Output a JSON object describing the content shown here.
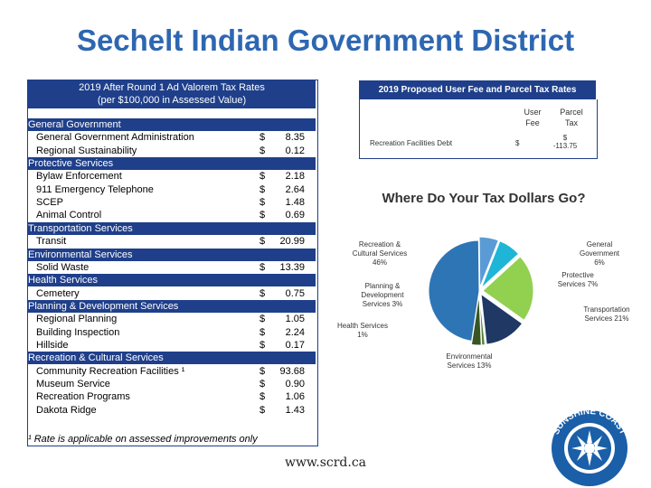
{
  "title": "Sechelt Indian Government District",
  "tax_table": {
    "header_line1": "2019 After Round 1 Ad Valorem Tax Rates",
    "header_line2": "(per $100,000 in Assessed Value)",
    "rows": [
      {
        "type": "cat",
        "label": "General Government"
      },
      {
        "type": "item",
        "label": "General Government Administration",
        "value": "8.35"
      },
      {
        "type": "item",
        "label": "Regional Sustainability",
        "value": "0.12"
      },
      {
        "type": "cat",
        "label": "Protective Services"
      },
      {
        "type": "item",
        "label": "Bylaw Enforcement",
        "value": "2.18"
      },
      {
        "type": "item",
        "label": "911 Emergency Telephone",
        "value": "2.64"
      },
      {
        "type": "item",
        "label": "SCEP",
        "value": "1.48"
      },
      {
        "type": "item",
        "label": "Animal Control",
        "value": "0.69"
      },
      {
        "type": "cat",
        "label": "Transportation Services"
      },
      {
        "type": "item",
        "label": "Transit",
        "value": "20.99"
      },
      {
        "type": "cat",
        "label": "Environmental Services"
      },
      {
        "type": "item",
        "label": "Solid Waste",
        "value": "13.39"
      },
      {
        "type": "cat",
        "label": "Health Services"
      },
      {
        "type": "item",
        "label": "Cemetery",
        "value": "0.75"
      },
      {
        "type": "cat",
        "label": "Planning & Development Services"
      },
      {
        "type": "item",
        "label": "Regional Planning",
        "value": "1.05"
      },
      {
        "type": "item",
        "label": "Building Inspection",
        "value": "2.24"
      },
      {
        "type": "item",
        "label": "Hillside",
        "value": "0.17"
      },
      {
        "type": "cat",
        "label": "Recreation & Cultural Services"
      },
      {
        "type": "item",
        "label": "Community Recreation Facilities ¹",
        "value": "93.68"
      },
      {
        "type": "item",
        "label": "Museum Service",
        "value": "0.90"
      },
      {
        "type": "item",
        "label": "Recreation Programs",
        "value": "1.06"
      },
      {
        "type": "item",
        "label": "Dakota Ridge",
        "value": "1.43"
      }
    ],
    "currency": "$",
    "footnote": "¹ Rate is applicable on assessed improvements only"
  },
  "fee_table": {
    "header": "2019 Proposed User Fee and Parcel Tax Rates",
    "col1": "User Fee",
    "col2": "Parcel Tax",
    "row_label": "Recreation Facilities Debt",
    "row_fee": "$",
    "row_parcel_line1": "$",
    "row_parcel_line2": "-113.75"
  },
  "chart_data": {
    "type": "pie",
    "title": "Where Do Your Tax Dollars Go?",
    "slices": [
      {
        "label": "Recreation & Cultural Services",
        "value": 46,
        "color": "#2e75b6",
        "text": "Recreation & Cultural Services 46%"
      },
      {
        "label": "General Government",
        "value": 6,
        "color": "#5b9bd5",
        "text": "General Government 6%"
      },
      {
        "label": "Protective Services",
        "value": 7,
        "color": "#1fb5d6",
        "text": "Protective Services 7%"
      },
      {
        "label": "Transportation Services",
        "value": 21,
        "color": "#92d050",
        "text": "Transportation Services 21%"
      },
      {
        "label": "Environmental Services",
        "value": 13,
        "color": "#1f3864",
        "text": "Environmental Services 13%"
      },
      {
        "label": "Health Services",
        "value": 1,
        "color": "#548235",
        "text": "Health Services 1%"
      },
      {
        "label": "Planning & Development Services",
        "value": 3,
        "color": "#375623",
        "text": "Planning & Development Services 3%"
      }
    ]
  },
  "url": "www.scrd.ca",
  "logo": {
    "text_top": "SUNSHINE COAST",
    "text_bottom": "REGIONAL DISTRICT",
    "color": "#1a5fa8"
  }
}
